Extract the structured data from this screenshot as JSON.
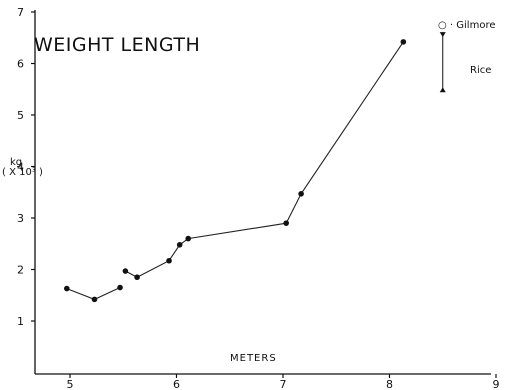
{
  "chart_data": {
    "type": "line",
    "title": "WEIGHT LENGTH",
    "xlabel": "METERS",
    "ylabel_unit": "kg",
    "ylabel_scale": "( X 10³ )",
    "xlim": [
      4.6,
      9
    ],
    "ylim": [
      0,
      7
    ],
    "x_ticks": [
      "5",
      "6",
      "7",
      "8",
      "9"
    ],
    "y_ticks": [
      "1",
      "2",
      "3",
      "4",
      "5",
      "6",
      "7"
    ],
    "grid": false,
    "legend": {
      "placement": "top-right",
      "entries": [
        {
          "label": "Gilmore",
          "marker": "o"
        },
        {
          "label": "Rice",
          "marker": "range-bar"
        }
      ]
    },
    "rice_range": {
      "x": 8.5,
      "ymin": 5.5,
      "ymax": 6.55
    },
    "series": [
      {
        "x": [
          4.97,
          5.23,
          5.47
        ],
        "y": [
          1.63,
          1.42,
          1.65
        ]
      },
      {
        "x": [
          5.52,
          5.63,
          5.93,
          6.03,
          6.11,
          7.03,
          7.17,
          8.13
        ],
        "y": [
          1.97,
          1.85,
          2.17,
          2.48,
          2.6,
          2.9,
          3.47,
          6.42
        ]
      }
    ]
  }
}
